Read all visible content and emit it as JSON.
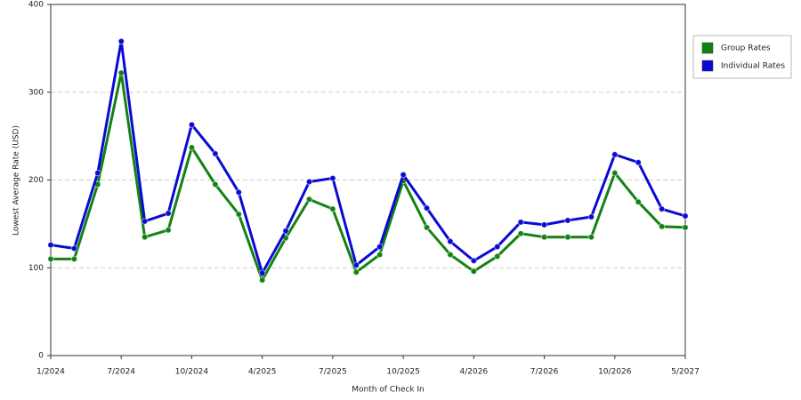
{
  "chart_data": {
    "type": "line",
    "x_label": "Month of Check In",
    "y_label": "Lowest Average Rate (USD)",
    "categories": [
      "1/2024",
      null,
      null,
      "7/2024",
      null,
      null,
      "10/2024",
      null,
      null,
      "4/2025",
      null,
      null,
      "7/2025",
      null,
      null,
      "10/2025",
      null,
      null,
      "4/2026",
      null,
      null,
      "7/2026",
      null,
      null,
      "10/2026",
      null,
      null,
      "5/2027"
    ],
    "series": [
      {
        "name": "Group Rates",
        "color": "#138213",
        "values": [
          110,
          110,
          195,
          322,
          135,
          143,
          237,
          195,
          161,
          86,
          134,
          178,
          167,
          95,
          115,
          199,
          146,
          115,
          96,
          113,
          139,
          135,
          135,
          135,
          208,
          175,
          147,
          146
        ]
      },
      {
        "name": "Individual Rates",
        "color": "#0a0ad2",
        "values": [
          126,
          122,
          208,
          358,
          153,
          162,
          263,
          230,
          186,
          94,
          142,
          198,
          202,
          103,
          124,
          206,
          168,
          130,
          108,
          124,
          152,
          149,
          154,
          158,
          229,
          220,
          167,
          159
        ]
      }
    ],
    "ylim": [
      0,
      400
    ],
    "yticks": [
      0,
      100,
      200,
      300,
      400
    ],
    "grid": true,
    "legend": "right"
  }
}
